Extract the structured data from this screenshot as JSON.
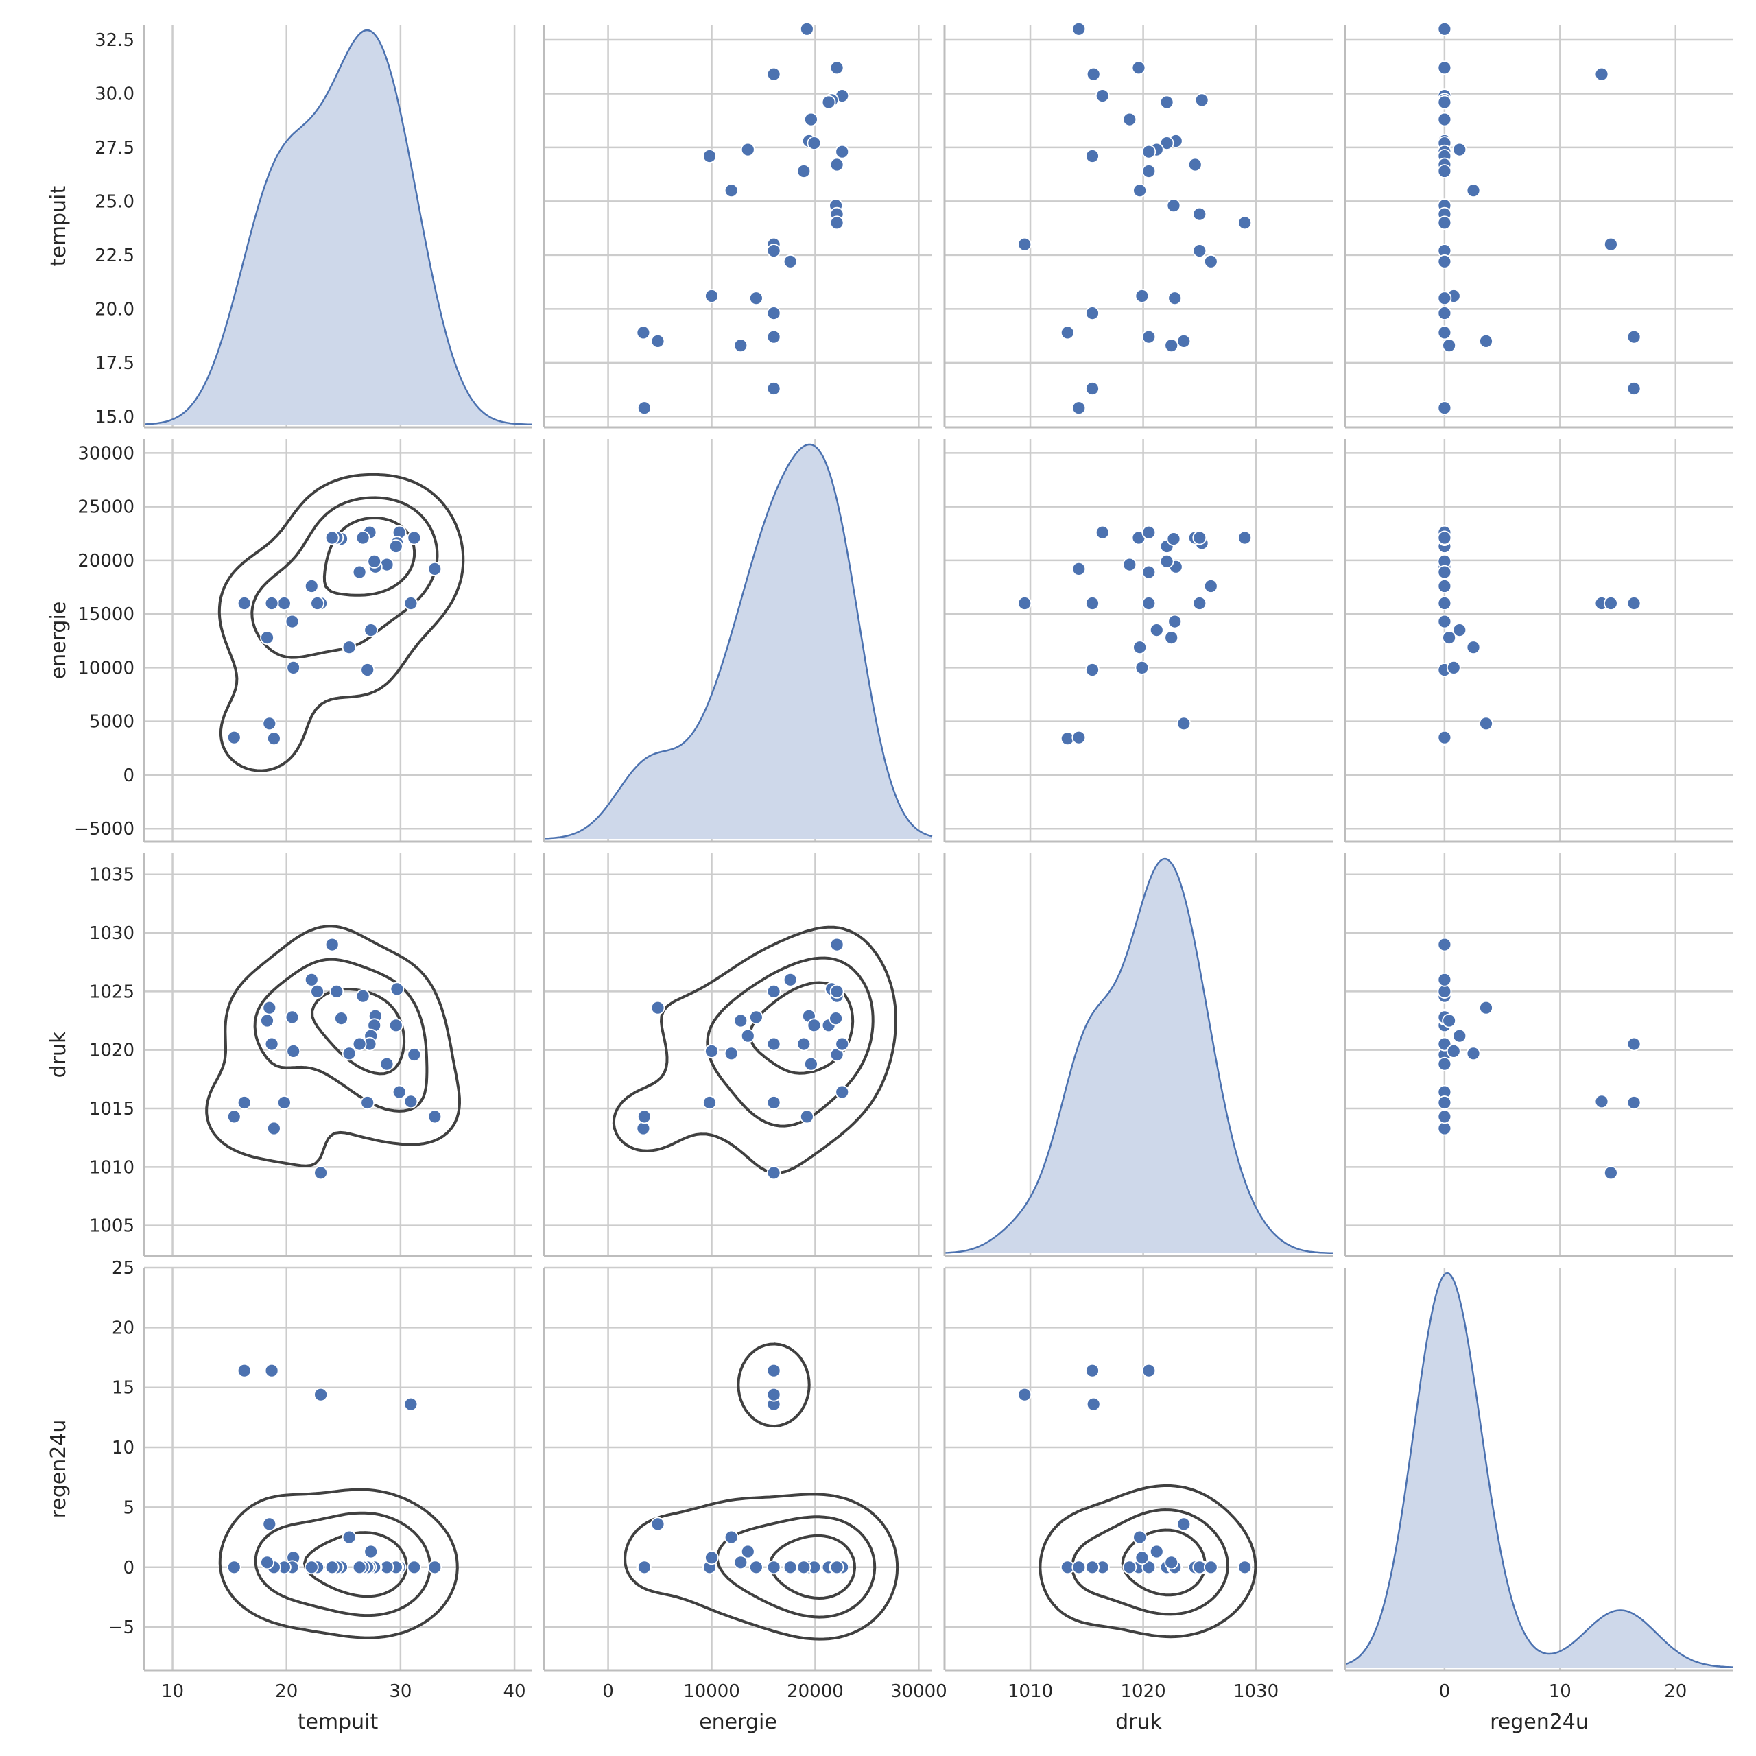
{
  "colors": {
    "point": "#4c72b0",
    "point_edge": "#ffffff",
    "kde_fill": "#ced8ea",
    "kde_line": "#4c72b0",
    "contour": "#404040",
    "grid": "#cccccc",
    "frame": "#bdbdbd"
  },
  "chart_data": {
    "type": "scatter",
    "layout": "pairplot",
    "variables": [
      "tempuit",
      "energie",
      "druk",
      "regen24u"
    ],
    "diagonal": "kde",
    "upper": "scatter",
    "lower": "scatter+kde-contours",
    "grid": true,
    "axes": {
      "tempuit": {
        "label": "tempuit",
        "range": [
          14.5,
          33.2
        ],
        "ticks": [
          "15.0",
          "17.5",
          "20.0",
          "22.5",
          "25.0",
          "27.5",
          "30.0",
          "32.5"
        ],
        "xrange": [
          7.5,
          41.5
        ],
        "xticks": [
          "10",
          "20",
          "30",
          "40"
        ]
      },
      "energie": {
        "label": "energie",
        "range": [
          -6200,
          31300
        ],
        "ticks": [
          "−5000",
          "0",
          "5000",
          "10000",
          "15000",
          "20000",
          "25000",
          "30000"
        ],
        "xticks": [
          "0",
          "10000",
          "20000",
          "30000"
        ]
      },
      "druk": {
        "label": "druk",
        "range": [
          1002.4,
          1036.8
        ],
        "ticks": [
          "1005",
          "1010",
          "1015",
          "1020",
          "1025",
          "1030",
          "1035"
        ],
        "xticks": [
          "1010",
          "1020",
          "1030"
        ]
      },
      "regen24u": {
        "label": "regen24u",
        "range": [
          -8.6,
          25.0
        ],
        "ticks": [
          "−5",
          "0",
          "5",
          "10",
          "15",
          "20",
          "25"
        ],
        "xticks": [
          "0",
          "10",
          "20"
        ]
      }
    },
    "records": [
      {
        "tempuit": 33.0,
        "energie": 19200,
        "druk": 1014.3,
        "regen24u": 0.0
      },
      {
        "tempuit": 31.2,
        "energie": 22100,
        "druk": 1019.6,
        "regen24u": 0.0
      },
      {
        "tempuit": 30.9,
        "energie": 16000,
        "druk": 1015.6,
        "regen24u": 13.6
      },
      {
        "tempuit": 29.9,
        "energie": 22600,
        "druk": 1016.4,
        "regen24u": 0.0
      },
      {
        "tempuit": 29.7,
        "energie": 21600,
        "druk": 1025.2,
        "regen24u": 0.0
      },
      {
        "tempuit": 29.6,
        "energie": 21300,
        "druk": 1022.1,
        "regen24u": 0.0
      },
      {
        "tempuit": 28.8,
        "energie": 19600,
        "druk": 1018.8,
        "regen24u": 0.0
      },
      {
        "tempuit": 27.8,
        "energie": 19400,
        "druk": 1022.9,
        "regen24u": 0.0
      },
      {
        "tempuit": 27.7,
        "energie": 19900,
        "druk": 1022.1,
        "regen24u": 0.0
      },
      {
        "tempuit": 27.4,
        "energie": 13500,
        "druk": 1021.2,
        "regen24u": 1.3
      },
      {
        "tempuit": 27.3,
        "energie": 22600,
        "druk": 1020.5,
        "regen24u": 0.0
      },
      {
        "tempuit": 27.1,
        "energie": 9800,
        "druk": 1015.5,
        "regen24u": 0.0
      },
      {
        "tempuit": 26.7,
        "energie": 22100,
        "druk": 1024.6,
        "regen24u": 0.0
      },
      {
        "tempuit": 26.4,
        "energie": 18900,
        "druk": 1020.5,
        "regen24u": 0.0
      },
      {
        "tempuit": 25.5,
        "energie": 11900,
        "druk": 1019.7,
        "regen24u": 2.5
      },
      {
        "tempuit": 24.8,
        "energie": 22000,
        "druk": 1022.7,
        "regen24u": 0.0
      },
      {
        "tempuit": 24.4,
        "energie": 22100,
        "druk": 1025.0,
        "regen24u": 0.0
      },
      {
        "tempuit": 24.0,
        "energie": 22100,
        "druk": 1029.0,
        "regen24u": 0.0
      },
      {
        "tempuit": 23.0,
        "energie": 16000,
        "druk": 1009.5,
        "regen24u": 14.4
      },
      {
        "tempuit": 22.7,
        "energie": 16000,
        "druk": 1025.0,
        "regen24u": 0.0
      },
      {
        "tempuit": 22.2,
        "energie": 17600,
        "druk": 1026.0,
        "regen24u": 0.0
      },
      {
        "tempuit": 20.6,
        "energie": 10000,
        "druk": 1019.9,
        "regen24u": 0.8
      },
      {
        "tempuit": 20.5,
        "energie": 14300,
        "druk": 1022.8,
        "regen24u": 0.0
      },
      {
        "tempuit": 19.8,
        "energie": 16000,
        "druk": 1015.5,
        "regen24u": 0.0
      },
      {
        "tempuit": 18.9,
        "energie": 3400,
        "druk": 1013.3,
        "regen24u": 0.0
      },
      {
        "tempuit": 18.7,
        "energie": 16000,
        "druk": 1020.5,
        "regen24u": 16.4
      },
      {
        "tempuit": 18.5,
        "energie": 4800,
        "druk": 1023.6,
        "regen24u": 3.6
      },
      {
        "tempuit": 18.3,
        "energie": 12800,
        "druk": 1022.5,
        "regen24u": 0.4
      },
      {
        "tempuit": 16.3,
        "energie": 16000,
        "druk": 1015.5,
        "regen24u": 16.4
      },
      {
        "tempuit": 15.4,
        "energie": 3500,
        "druk": 1014.3,
        "regen24u": 0.0
      }
    ]
  }
}
